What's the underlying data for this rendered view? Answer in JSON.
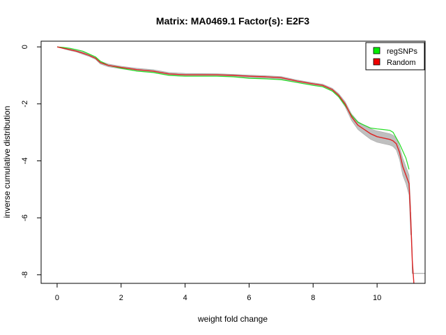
{
  "chart_data": {
    "type": "line",
    "title": "Matrix: MA0469.1 Factor(s): E2F3",
    "xlabel": "weight fold change",
    "ylabel": "inverse cumulative distribution",
    "xlim": [
      -0.5,
      11.5
    ],
    "ylim": [
      -8.3,
      0.2
    ],
    "x_ticks": [
      0,
      2,
      4,
      6,
      8,
      10
    ],
    "y_ticks": [
      0,
      -2,
      -4,
      -6,
      -8
    ],
    "legend": {
      "placement": "top-right",
      "entries": [
        {
          "label": "regSNPs",
          "color": "#00ee00"
        },
        {
          "label": "Random",
          "color": "#ee0000"
        }
      ]
    },
    "series": [
      {
        "name": "regSNPs",
        "color": "#22dd22",
        "x": [
          0,
          0.2,
          0.4,
          0.6,
          0.8,
          1.0,
          1.2,
          1.35,
          1.6,
          2.0,
          2.5,
          3.0,
          3.5,
          4.0,
          5.0,
          5.5,
          6.0,
          6.5,
          7.0,
          7.5,
          8.0,
          8.3,
          8.6,
          8.8,
          9.0,
          9.2,
          9.4,
          9.6,
          9.8,
          10.0,
          10.2,
          10.4,
          10.5,
          10.6,
          10.7,
          10.8,
          10.9,
          11.0
        ],
        "values": [
          0,
          -0.02,
          -0.05,
          -0.1,
          -0.15,
          -0.25,
          -0.35,
          -0.5,
          -0.65,
          -0.75,
          -0.85,
          -0.9,
          -1.0,
          -1.03,
          -1.03,
          -1.05,
          -1.1,
          -1.12,
          -1.15,
          -1.25,
          -1.35,
          -1.4,
          -1.55,
          -1.75,
          -2.05,
          -2.4,
          -2.65,
          -2.75,
          -2.85,
          -2.88,
          -2.9,
          -2.93,
          -3.0,
          -3.2,
          -3.4,
          -3.65,
          -3.9,
          -4.3
        ]
      },
      {
        "name": "Random",
        "color": "#dd2222",
        "x": [
          0,
          0.2,
          0.4,
          0.6,
          0.8,
          1.0,
          1.2,
          1.35,
          1.6,
          2.0,
          2.5,
          3.0,
          3.5,
          4.0,
          5.0,
          5.5,
          6.0,
          6.5,
          7.0,
          7.5,
          8.0,
          8.3,
          8.6,
          8.8,
          9.0,
          9.2,
          9.4,
          9.6,
          9.8,
          10.0,
          10.2,
          10.4,
          10.5,
          10.6,
          10.7,
          10.8,
          10.9,
          11.0,
          11.05,
          11.1,
          11.15
        ],
        "values": [
          0,
          -0.05,
          -0.1,
          -0.15,
          -0.22,
          -0.3,
          -0.4,
          -0.55,
          -0.65,
          -0.72,
          -0.8,
          -0.85,
          -0.95,
          -0.98,
          -0.98,
          -1.0,
          -1.03,
          -1.05,
          -1.08,
          -1.2,
          -1.3,
          -1.35,
          -1.5,
          -1.7,
          -2.0,
          -2.45,
          -2.75,
          -2.9,
          -3.05,
          -3.15,
          -3.2,
          -3.25,
          -3.3,
          -3.4,
          -3.7,
          -4.2,
          -4.5,
          -4.8,
          -6.0,
          -7.5,
          -8.3
        ]
      }
    ],
    "random_envelope": {
      "color": "#b8b8b8",
      "x": [
        0,
        0.2,
        0.4,
        0.6,
        0.8,
        1.0,
        1.2,
        1.35,
        1.6,
        2.0,
        2.5,
        3.0,
        3.5,
        4.0,
        5.0,
        5.5,
        6.0,
        6.5,
        7.0,
        7.5,
        8.0,
        8.3,
        8.6,
        8.8,
        9.0,
        9.2,
        9.4,
        9.6,
        9.8,
        10.0,
        10.2,
        10.4,
        10.5,
        10.6,
        10.7,
        10.8,
        10.9,
        11.0,
        11.05
      ],
      "upper": [
        0,
        -0.03,
        -0.07,
        -0.12,
        -0.18,
        -0.26,
        -0.36,
        -0.5,
        -0.6,
        -0.68,
        -0.75,
        -0.8,
        -0.9,
        -0.93,
        -0.94,
        -0.96,
        -0.99,
        -1.01,
        -1.04,
        -1.16,
        -1.26,
        -1.31,
        -1.45,
        -1.64,
        -1.92,
        -2.35,
        -2.62,
        -2.75,
        -2.88,
        -2.95,
        -3.0,
        -3.05,
        -3.1,
        -3.2,
        -3.5,
        -3.9,
        -4.2,
        -4.5,
        -5.6
      ],
      "lower": [
        0,
        -0.07,
        -0.13,
        -0.18,
        -0.26,
        -0.34,
        -0.44,
        -0.6,
        -0.7,
        -0.77,
        -0.85,
        -0.9,
        -1.0,
        -1.03,
        -1.03,
        -1.05,
        -1.08,
        -1.1,
        -1.13,
        -1.25,
        -1.35,
        -1.4,
        -1.56,
        -1.77,
        -2.1,
        -2.58,
        -2.9,
        -3.08,
        -3.25,
        -3.35,
        -3.4,
        -3.45,
        -3.5,
        -3.62,
        -3.95,
        -4.5,
        -4.8,
        -5.2,
        -6.6
      ]
    },
    "grey_tail": {
      "color": "#999999",
      "x": [
        11.05,
        11.1,
        11.1,
        11.5,
        11.5
      ],
      "values": [
        -5.8,
        -7.3,
        -7.95,
        -7.95,
        -7.25
      ]
    }
  }
}
